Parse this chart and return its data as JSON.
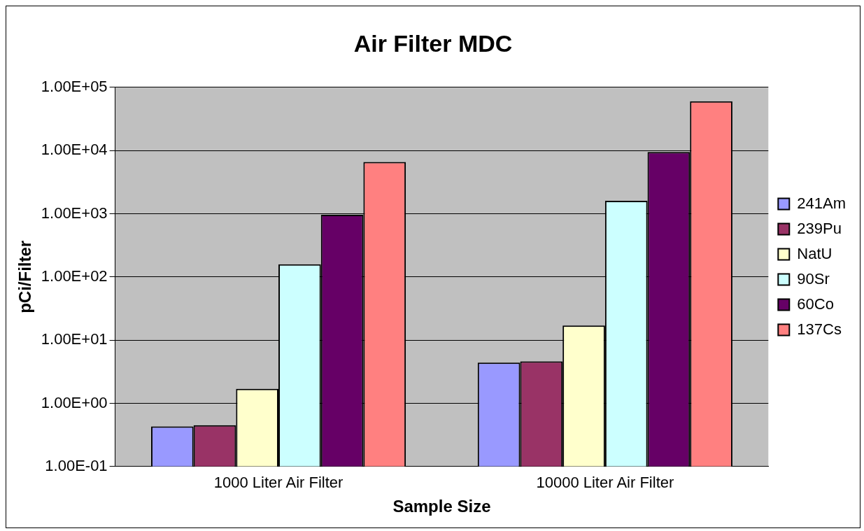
{
  "chart_data": {
    "type": "bar",
    "title": "Air Filter MDC",
    "xlabel": "Sample Size",
    "ylabel": "pCi/Filter",
    "categories": [
      "1000 Liter Air Filter",
      "10000 Liter Air Filter"
    ],
    "series": [
      {
        "name": "241Am",
        "color": "#9999ff",
        "values": [
          0.43,
          4.4
        ]
      },
      {
        "name": "239Pu",
        "color": "#993366",
        "values": [
          0.45,
          4.6
        ]
      },
      {
        "name": "NatU",
        "color": "#ffffcc",
        "values": [
          1.7,
          17
        ]
      },
      {
        "name": "90Sr",
        "color": "#ccffff",
        "values": [
          158,
          1600
        ]
      },
      {
        "name": "60Co",
        "color": "#660066",
        "values": [
          960,
          9500
        ]
      },
      {
        "name": "137Cs",
        "color": "#ff8080",
        "values": [
          6600,
          60000
        ]
      }
    ],
    "log": "y",
    "ylim": [
      0.1,
      100000
    ],
    "yticks": [
      {
        "value": 0.1,
        "label": "1.00E-01"
      },
      {
        "value": 1,
        "label": "1.00E+00"
      },
      {
        "value": 10,
        "label": "1.00E+01"
      },
      {
        "value": 100,
        "label": "1.00E+02"
      },
      {
        "value": 1000,
        "label": "1.00E+03"
      },
      {
        "value": 10000,
        "label": "1.00E+04"
      },
      {
        "value": 100000,
        "label": "1.00E+05"
      }
    ],
    "grid": "y",
    "legend": "right"
  }
}
